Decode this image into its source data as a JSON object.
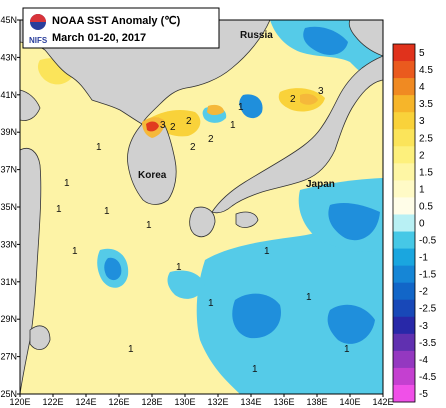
{
  "title": {
    "line1": "NOAA SST Anomaly (℃)",
    "line2": "March 01-20, 2017",
    "logo_text": "NIFS"
  },
  "map": {
    "x_ticks": [
      "120E",
      "122E",
      "124E",
      "126E",
      "128E",
      "130E",
      "132E",
      "134E",
      "136E",
      "138E",
      "140E",
      "142E"
    ],
    "y_ticks": [
      "45N",
      "43N",
      "41N",
      "39N",
      "37N",
      "35N",
      "33N",
      "31N",
      "29N",
      "27N",
      "25N"
    ],
    "places": {
      "russia": "Russia",
      "korea": "Korea",
      "japan": "Japan"
    },
    "contour_labels": [
      "2",
      "2",
      "3",
      "2",
      "1",
      "2",
      "1",
      "1",
      "2",
      "3",
      "1",
      "1",
      "1",
      "1",
      "1",
      "1",
      "1",
      "1",
      "1",
      "1",
      "1",
      "1"
    ]
  },
  "colorbar": {
    "labels": [
      "5",
      "4.5",
      "4",
      "3.5",
      "3",
      "2.5",
      "2",
      "1.5",
      "1",
      "0.5",
      "0",
      "-0.5",
      "-1",
      "-1.5",
      "-2",
      "-2.5",
      "-3",
      "-3.5",
      "-4",
      "-4.5",
      "-5"
    ],
    "colors": [
      "#e0321c",
      "#ea5a1e",
      "#f08a22",
      "#f6b52a",
      "#f9d23a",
      "#fbe45a",
      "#fdf07c",
      "#fef6a4",
      "#fffac6",
      "#fffde8",
      "#b8f0f4",
      "#46c8e6",
      "#1aa6df",
      "#1686d6",
      "#1266c8",
      "#1848b8",
      "#2828a8",
      "#6030b0",
      "#9438c0",
      "#c440d0",
      "#f050e8"
    ]
  },
  "colors": {
    "land": "#d0d0d0",
    "warm": "#fdf3a6",
    "cool": "#55cbe8",
    "deep_cool": "#1f8fdc",
    "hot": "#f5b83a",
    "hottest": "#e13b1f"
  }
}
